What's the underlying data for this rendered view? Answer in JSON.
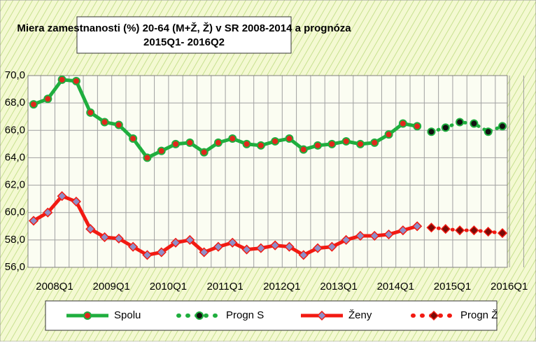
{
  "chart_data": {
    "type": "line",
    "title": [
      "Miera zamestnanosti (%) 20-64 (M+Ž, Ž) v SR 2008-2014 a prognóza",
      "2015Q1- 2016Q2"
    ],
    "categories": [
      "2008Q1",
      null,
      null,
      null,
      "2009Q1",
      null,
      null,
      null,
      "2010Q1",
      null,
      null,
      null,
      "2011Q1",
      null,
      null,
      null,
      "2012Q1",
      null,
      null,
      null,
      "2013Q1",
      null,
      null,
      null,
      "2014Q1",
      null,
      null,
      null,
      "2015Q1",
      null,
      null,
      null,
      "2016Q1",
      null
    ],
    "series": [
      {
        "name": "Spolu",
        "color": "#1fae3e",
        "marker_color": "#e0281c",
        "marker": "circle",
        "dotted": false,
        "values": [
          67.9,
          68.3,
          69.7,
          69.6,
          67.3,
          66.6,
          66.4,
          65.4,
          64.0,
          64.5,
          65.0,
          65.1,
          64.4,
          65.1,
          65.4,
          65.0,
          64.9,
          65.2,
          65.4,
          64.6,
          64.9,
          65.0,
          65.2,
          65.0,
          65.1,
          65.7,
          66.5,
          66.3,
          null,
          null,
          null,
          null,
          null,
          null
        ]
      },
      {
        "name": "Progn S",
        "color": "#1fae3e",
        "marker_color": "#111111",
        "marker": "circle",
        "dotted": true,
        "values": [
          null,
          null,
          null,
          null,
          null,
          null,
          null,
          null,
          null,
          null,
          null,
          null,
          null,
          null,
          null,
          null,
          null,
          null,
          null,
          null,
          null,
          null,
          null,
          null,
          null,
          null,
          null,
          null,
          65.9,
          66.2,
          66.6,
          66.5,
          65.9,
          66.3
        ]
      },
      {
        "name": "Ženy",
        "color": "#f21a12",
        "marker_color": "#8f8fc8",
        "marker": "diamond",
        "dotted": false,
        "values": [
          59.4,
          60.0,
          61.2,
          60.8,
          58.8,
          58.2,
          58.1,
          57.5,
          56.9,
          57.1,
          57.8,
          58.0,
          57.1,
          57.5,
          57.8,
          57.3,
          57.4,
          57.6,
          57.5,
          56.9,
          57.4,
          57.5,
          58.0,
          58.3,
          58.3,
          58.4,
          58.7,
          59.0,
          null,
          null,
          null,
          null,
          null,
          null
        ]
      },
      {
        "name": "Progn Ž",
        "color": "#f21a12",
        "marker_color": "#7a0a06",
        "marker": "diamond",
        "dotted": true,
        "values": [
          null,
          null,
          null,
          null,
          null,
          null,
          null,
          null,
          null,
          null,
          null,
          null,
          null,
          null,
          null,
          null,
          null,
          null,
          null,
          null,
          null,
          null,
          null,
          null,
          null,
          null,
          null,
          null,
          58.9,
          58.8,
          58.7,
          58.7,
          58.6,
          58.5
        ]
      }
    ],
    "ylim": [
      56,
      70
    ],
    "yticks": [
      {
        "value": 56,
        "label": "56,0"
      },
      {
        "value": 58,
        "label": "58,0"
      },
      {
        "value": 60,
        "label": "60,0"
      },
      {
        "value": 62,
        "label": "62,0"
      },
      {
        "value": 64,
        "label": "64,0"
      },
      {
        "value": 66,
        "label": "66,0"
      },
      {
        "value": 68,
        "label": "68,0"
      },
      {
        "value": 70,
        "label": "70,0"
      }
    ],
    "grid": true,
    "legend": "bottom"
  }
}
